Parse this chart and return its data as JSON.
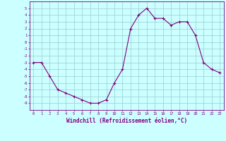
{
  "xlabel": "Windchill (Refroidissement éolien,°C)",
  "x_values": [
    0,
    1,
    2,
    3,
    4,
    5,
    6,
    7,
    8,
    9,
    10,
    11,
    12,
    13,
    14,
    15,
    16,
    17,
    18,
    19,
    20,
    21,
    22,
    23
  ],
  "y_values": [
    -3,
    -3,
    -5,
    -7,
    -7.5,
    -8,
    -8.5,
    -9,
    -9,
    -8.5,
    -6,
    -4,
    2,
    4,
    5,
    3.5,
    3.5,
    2.5,
    3,
    3,
    1,
    -3,
    -4,
    -4.5
  ],
  "line_color": "#800080",
  "marker": "+",
  "marker_size": 3,
  "marker_lw": 0.8,
  "line_width": 0.8,
  "bg_color": "#ccffff",
  "grid_color": "#99cccc",
  "axis_color": "#800080",
  "tick_label_color": "#800080",
  "xlabel_color": "#800080",
  "ylim": [
    -10,
    6
  ],
  "yticks": [
    5,
    4,
    3,
    2,
    1,
    0,
    -1,
    -2,
    -3,
    -4,
    -5,
    -6,
    -7,
    -8,
    -9
  ],
  "xlim": [
    -0.5,
    23.5
  ],
  "tick_fontsize": 4.0,
  "xlabel_fontsize": 5.5
}
